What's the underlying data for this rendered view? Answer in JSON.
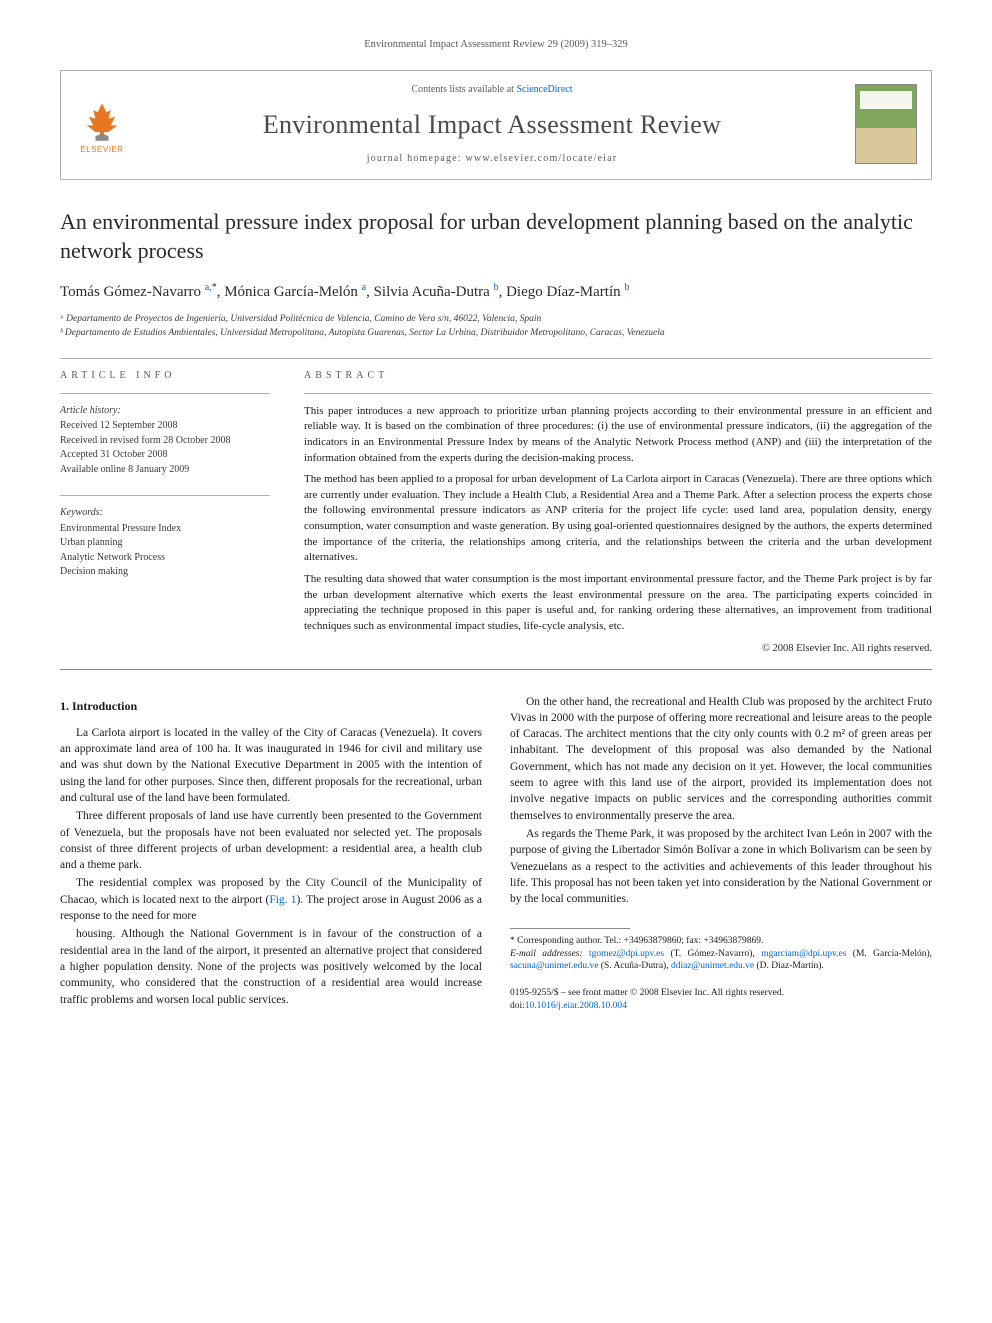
{
  "running_head": "Environmental Impact Assessment Review 29 (2009) 319–329",
  "header": {
    "contents_prefix": "Contents lists available at ",
    "contents_link": "ScienceDirect",
    "journal_name": "Environmental Impact Assessment Review",
    "homepage_prefix": "journal homepage: ",
    "homepage_url": "www.elsevier.com/locate/eiar",
    "publisher_word": "ELSEVIER"
  },
  "title": "An environmental pressure index proposal for urban development planning based on the analytic network process",
  "authors_html": "Tomás Gómez-Navarro <sup><a href='#'>a,</a>*</sup>, Mónica García-Melón <sup><a href='#'>a</a></sup>, Silvia Acuña-Dutra <sup><a href='#'>b</a></sup>, Diego Díaz-Martín <sup><a href='#'>b</a></sup>",
  "affiliations": [
    "ᵃ Departamento de Proyectos de Ingeniería, Universidad Politécnica de Valencia, Camino de Vera s/n, 46022, Valencia, Spain",
    "ᵇ Departamento de Estudios Ambientales, Universidad Metropolitana, Autopista Guarenas, Sector La Urbina, Distribuidor Metropolitano, Caracas, Venezuela"
  ],
  "article_info": {
    "heading": "article info",
    "history_label": "Article history:",
    "history": [
      "Received 12 September 2008",
      "Received in revised form 28 October 2008",
      "Accepted 31 October 2008",
      "Available online 8 January 2009"
    ],
    "keywords_label": "Keywords:",
    "keywords": [
      "Environmental Pressure Index",
      "Urban planning",
      "Analytic Network Process",
      "Decision making"
    ]
  },
  "abstract": {
    "heading": "abstract",
    "paragraphs": [
      "This paper introduces a new approach to prioritize urban planning projects according to their environmental pressure in an efficient and reliable way. It is based on the combination of three procedures: (i) the use of environmental pressure indicators, (ii) the aggregation of the indicators in an Environmental Pressure Index by means of the Analytic Network Process method (ANP) and (iii) the interpretation of the information obtained from the experts during the decision-making process.",
      "The method has been applied to a proposal for urban development of La Carlota airport in Caracas (Venezuela). There are three options which are currently under evaluation. They include a Health Club, a Residential Area and a Theme Park. After a selection process the experts chose the following environmental pressure indicators as ANP criteria for the project life cycle: used land area, population density, energy consumption, water consumption and waste generation. By using goal-oriented questionnaires designed by the authors, the experts determined the importance of the criteria, the relationships among criteria, and the relationships between the criteria and the urban development alternatives.",
      "The resulting data showed that water consumption is the most important environmental pressure factor, and the Theme Park project is by far the urban development alternative which exerts the least environmental pressure on the area. The participating experts coincided in appreciating the technique proposed in this paper is useful and, for ranking ordering these alternatives, an improvement from traditional techniques such as environmental impact studies, life-cycle analysis, etc."
    ],
    "copyright": "© 2008 Elsevier Inc. All rights reserved."
  },
  "body": {
    "section_heading": "1. Introduction",
    "paragraphs": [
      "La Carlota airport is located in the valley of the City of Caracas (Venezuela). It covers an approximate land area of 100 ha. It was inaugurated in 1946 for civil and military use and was shut down by the National Executive Department in 2005 with the intention of using the land for other purposes. Since then, different proposals for the recreational, urban and cultural use of the land have been formulated.",
      "Three different proposals of land use have currently been presented to the Government of Venezuela, but the proposals have not been evaluated nor selected yet. The proposals consist of three different projects of urban development: a residential area, a health club and a theme park.",
      "The residential complex was proposed by the City Council of the Municipality of Chacao, which is located next to the airport (<a href='#'>Fig. 1</a>). The project arose in August 2006 as a response to the need for more",
      "housing. Although the National Government is in favour of the construction of a residential area in the land of the airport, it presented an alternative project that considered a higher population density. None of the projects was positively welcomed by the local community, who considered that the construction of a residential area would increase traffic problems and worsen local public services.",
      "On the other hand, the recreational and Health Club was proposed by the architect Fruto Vivas in 2000 with the purpose of offering more recreational and leisure areas to the people of Caracas. The architect mentions that the city only counts with 0.2 m² of green areas per inhabitant. The development of this proposal was also demanded by the National Government, which has not made any decision on it yet. However, the local communities seem to agree with this land use of the airport, provided its implementation does not involve negative impacts on public services and the corresponding authorities commit themselves to environmentally preserve the area.",
      "As regards the Theme Park, it was proposed by the architect Ivan León in 2007 with the purpose of giving the Libertador Simón Bolívar a zone in which Bolivarism can be seen by Venezuelans as a respect to the activities and achievements of this leader throughout his life. This proposal has not been taken yet into consideration by the National Government or by the local communities."
    ]
  },
  "footnotes": {
    "corr": "* Corresponding author. Tel.: +34963879860; fax: +34963879869.",
    "email_label": "E-mail addresses:",
    "emails": [
      {
        "addr": "tgomez@dpi.upv.es",
        "who": "(T. Gómez-Navarro)"
      },
      {
        "addr": "mgarciam@dpi.upv.es",
        "who": "(M. García-Melón)"
      },
      {
        "addr": "sacuna@unimet.edu.ve",
        "who": "(S. Acuña-Dutra)"
      },
      {
        "addr": "ddiaz@unimet.edu.ve",
        "who": "(D. Díaz-Martín)"
      }
    ]
  },
  "footer": {
    "line1": "0195-9255/$ – see front matter © 2008 Elsevier Inc. All rights reserved.",
    "doi_prefix": "doi:",
    "doi": "10.1016/j.eiar.2008.10.004"
  },
  "colors": {
    "link": "#0066cc",
    "elsevier_orange": "#e87722",
    "rule": "#b0b0b0",
    "text": "#1a1a1a",
    "muted": "#5a5a5a"
  }
}
